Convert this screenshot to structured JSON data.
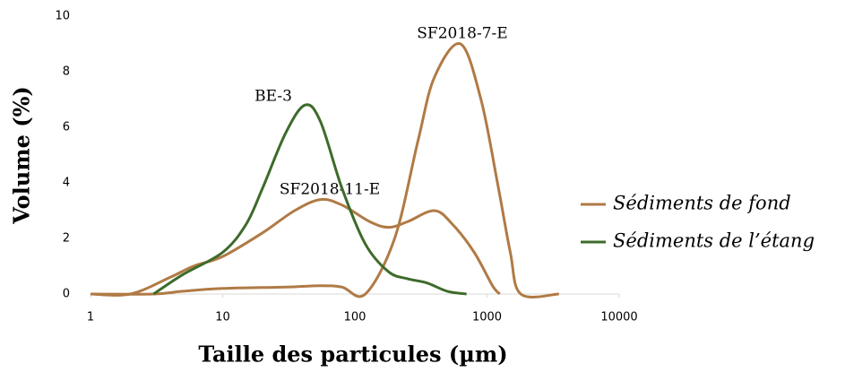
{
  "chart_data": {
    "type": "line",
    "xlabel": "Taille des particules (µm)",
    "ylabel": "Volume (%)",
    "xscale": "log",
    "xlim": [
      1,
      10000
    ],
    "xticks": [
      1,
      10,
      100,
      1000,
      10000
    ],
    "ylim": [
      0,
      10
    ],
    "yticks": [
      0,
      2,
      4,
      6,
      8,
      10
    ],
    "grid": false,
    "series": [
      {
        "name": "Sédiments de fond",
        "color": "#b07a45",
        "curves": [
          {
            "label": "SF2018-7-E",
            "x": [
              1,
              3,
              5,
              10,
              30,
              55,
              80,
              120,
              200,
              300,
              400,
              630,
              900,
              1200,
              1500,
              1800,
              3500
            ],
            "values": [
              0,
              0,
              0.1,
              0.2,
              0.25,
              0.3,
              0.25,
              0,
              2,
              5.5,
              7.8,
              9,
              7,
              4,
              1.5,
              0,
              0
            ]
          },
          {
            "label": "SF2018-11-E",
            "x": [
              1,
              2,
              4,
              6,
              10,
              20,
              35,
              55,
              80,
              130,
              180,
              250,
              400,
              550,
              800,
              1100,
              1250
            ],
            "values": [
              0,
              0,
              0.6,
              1.0,
              1.35,
              2.2,
              3.0,
              3.4,
              3.2,
              2.6,
              2.4,
              2.6,
              3.0,
              2.5,
              1.5,
              0.3,
              0
            ]
          }
        ]
      },
      {
        "name": "Sédiments de l’étang",
        "color": "#3d6b2a",
        "curves": [
          {
            "label": "BE-3",
            "x": [
              3,
              5,
              10,
              15,
              20,
              30,
              42,
              55,
              80,
              120,
              180,
              250,
              350,
              500,
              700
            ],
            "values": [
              0,
              0.7,
              1.5,
              2.5,
              3.8,
              5.8,
              6.8,
              6.2,
              3.8,
              1.8,
              0.8,
              0.55,
              0.4,
              0.1,
              0
            ]
          }
        ]
      }
    ]
  }
}
